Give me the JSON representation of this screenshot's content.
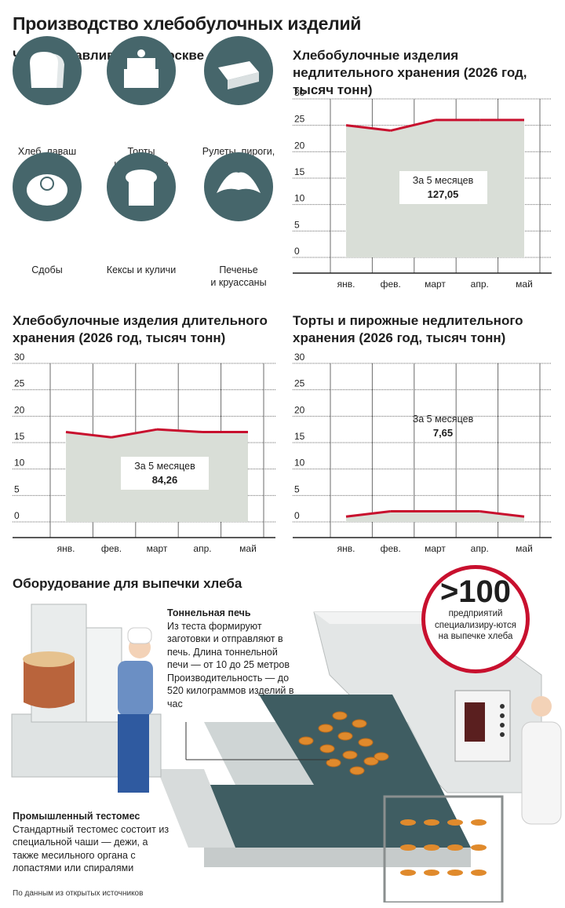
{
  "title": "Производство хлебобулочных изделий",
  "products": {
    "title": "Что изготавливают в Москве",
    "items": [
      {
        "label": "Хлеб, лаваш",
        "icon": "bread-icon"
      },
      {
        "label": "Торты\nи пирожные",
        "icon": "cake-icon"
      },
      {
        "label": "Рулеты, пироги,\nбрауни",
        "icon": "roll-icon"
      },
      {
        "label": "Сдобы",
        "icon": "bun-icon"
      },
      {
        "label": "Кексы и куличи",
        "icon": "kulich-icon"
      },
      {
        "label": "Печенье\nи круассаны",
        "icon": "croissant-icon"
      }
    ]
  },
  "colors": {
    "line": "#c8102e",
    "fill": "#d9ded7",
    "grid": "#6b6b6b",
    "icon_bg": "#46666b"
  },
  "chart_data": [
    {
      "type": "area",
      "title": "Хлебобулочные изделия недлительного хранения (2026 год, тысяч тонн)",
      "categories": [
        "янв.",
        "фев.",
        "март",
        "апр.",
        "май"
      ],
      "values": [
        25,
        24,
        26,
        26,
        26
      ],
      "ylim": [
        0,
        30
      ],
      "yticks": [
        0,
        5,
        10,
        15,
        20,
        25,
        30
      ],
      "callout_label": "За 5 месяцев",
      "callout_value": "127,05"
    },
    {
      "type": "area",
      "title": "Хлебобулочные изделия длительного хранения (2026 год, тысяч тонн)",
      "categories": [
        "янв.",
        "фев.",
        "март",
        "апр.",
        "май"
      ],
      "values": [
        17,
        16,
        17.5,
        17,
        17
      ],
      "ylim": [
        0,
        30
      ],
      "yticks": [
        0,
        5,
        10,
        15,
        20,
        25,
        30
      ],
      "callout_label": "За 5 месяцев",
      "callout_value": "84,26"
    },
    {
      "type": "area",
      "title": "Торты и пирожные недлительного хранения (2026 год, тысяч тонн)",
      "categories": [
        "янв.",
        "фев.",
        "март",
        "апр.",
        "май"
      ],
      "values": [
        1,
        2,
        2,
        2,
        1
      ],
      "ylim": [
        0,
        30
      ],
      "yticks": [
        0,
        5,
        10,
        15,
        20,
        25,
        30
      ],
      "callout_label": "За 5 месяцев",
      "callout_value": "7,65"
    }
  ],
  "equipment": {
    "title": "Оборудование для выпечки хлеба",
    "oven_heading": "Тоннельная печь",
    "oven_text": "Из теста формируют заготовки и отправляют в печь. Длина тоннельной печи — от 10 до 25 метров Производительность — до 520 килограммов изделий в час",
    "mixer_heading": "Промышленный тестомес",
    "mixer_text": "Стандартный тестомес состоит из специальной чаши — дежи, а также месильного органа с лопастями или спиралями",
    "badge_big": ">100",
    "badge_small": "предприятий специализиру-ются на выпечке хлеба"
  },
  "source": "По данным из открытых источников"
}
